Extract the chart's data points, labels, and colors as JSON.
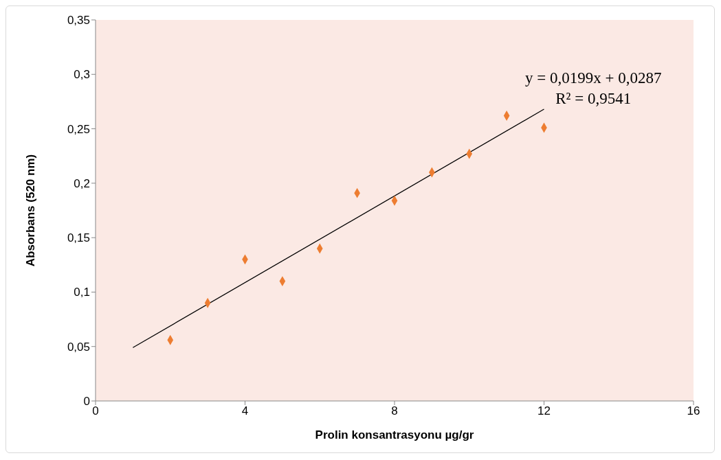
{
  "chart_data": {
    "type": "scatter",
    "xlabel": "Prolin konsantrasyonu µg/gr",
    "ylabel": "Absorbans (520 nm)",
    "xlim": [
      0,
      16
    ],
    "xticks": [
      0,
      4,
      8,
      12,
      16
    ],
    "ylim": [
      0,
      0.35
    ],
    "yticks": [
      {
        "value": 0,
        "label": "0"
      },
      {
        "value": 0.05,
        "label": "0,05"
      },
      {
        "value": 0.1,
        "label": "0,1"
      },
      {
        "value": 0.15,
        "label": "0,15"
      },
      {
        "value": 0.2,
        "label": "0,2"
      },
      {
        "value": 0.25,
        "label": "0,25"
      },
      {
        "value": 0.3,
        "label": "0,3"
      },
      {
        "value": 0.35,
        "label": "0,35"
      }
    ],
    "grid": false,
    "annotations": [
      "y = 0,0199x + 0,0287",
      "R² = 0,9541"
    ],
    "series": [
      {
        "color": "#ed7d31",
        "marker": "diamond",
        "x": [
          2,
          3,
          4,
          5,
          6,
          7,
          8,
          9,
          10,
          11,
          12
        ],
        "values": [
          0.056,
          0.09,
          0.13,
          0.11,
          0.14,
          0.191,
          0.184,
          0.21,
          0.227,
          0.262,
          0.251
        ]
      },
      {
        "type": "line",
        "color": "#000000",
        "marker": "none",
        "line_style": "solid",
        "x": [
          1,
          12
        ],
        "values": [
          0.049,
          0.268
        ]
      }
    ]
  }
}
